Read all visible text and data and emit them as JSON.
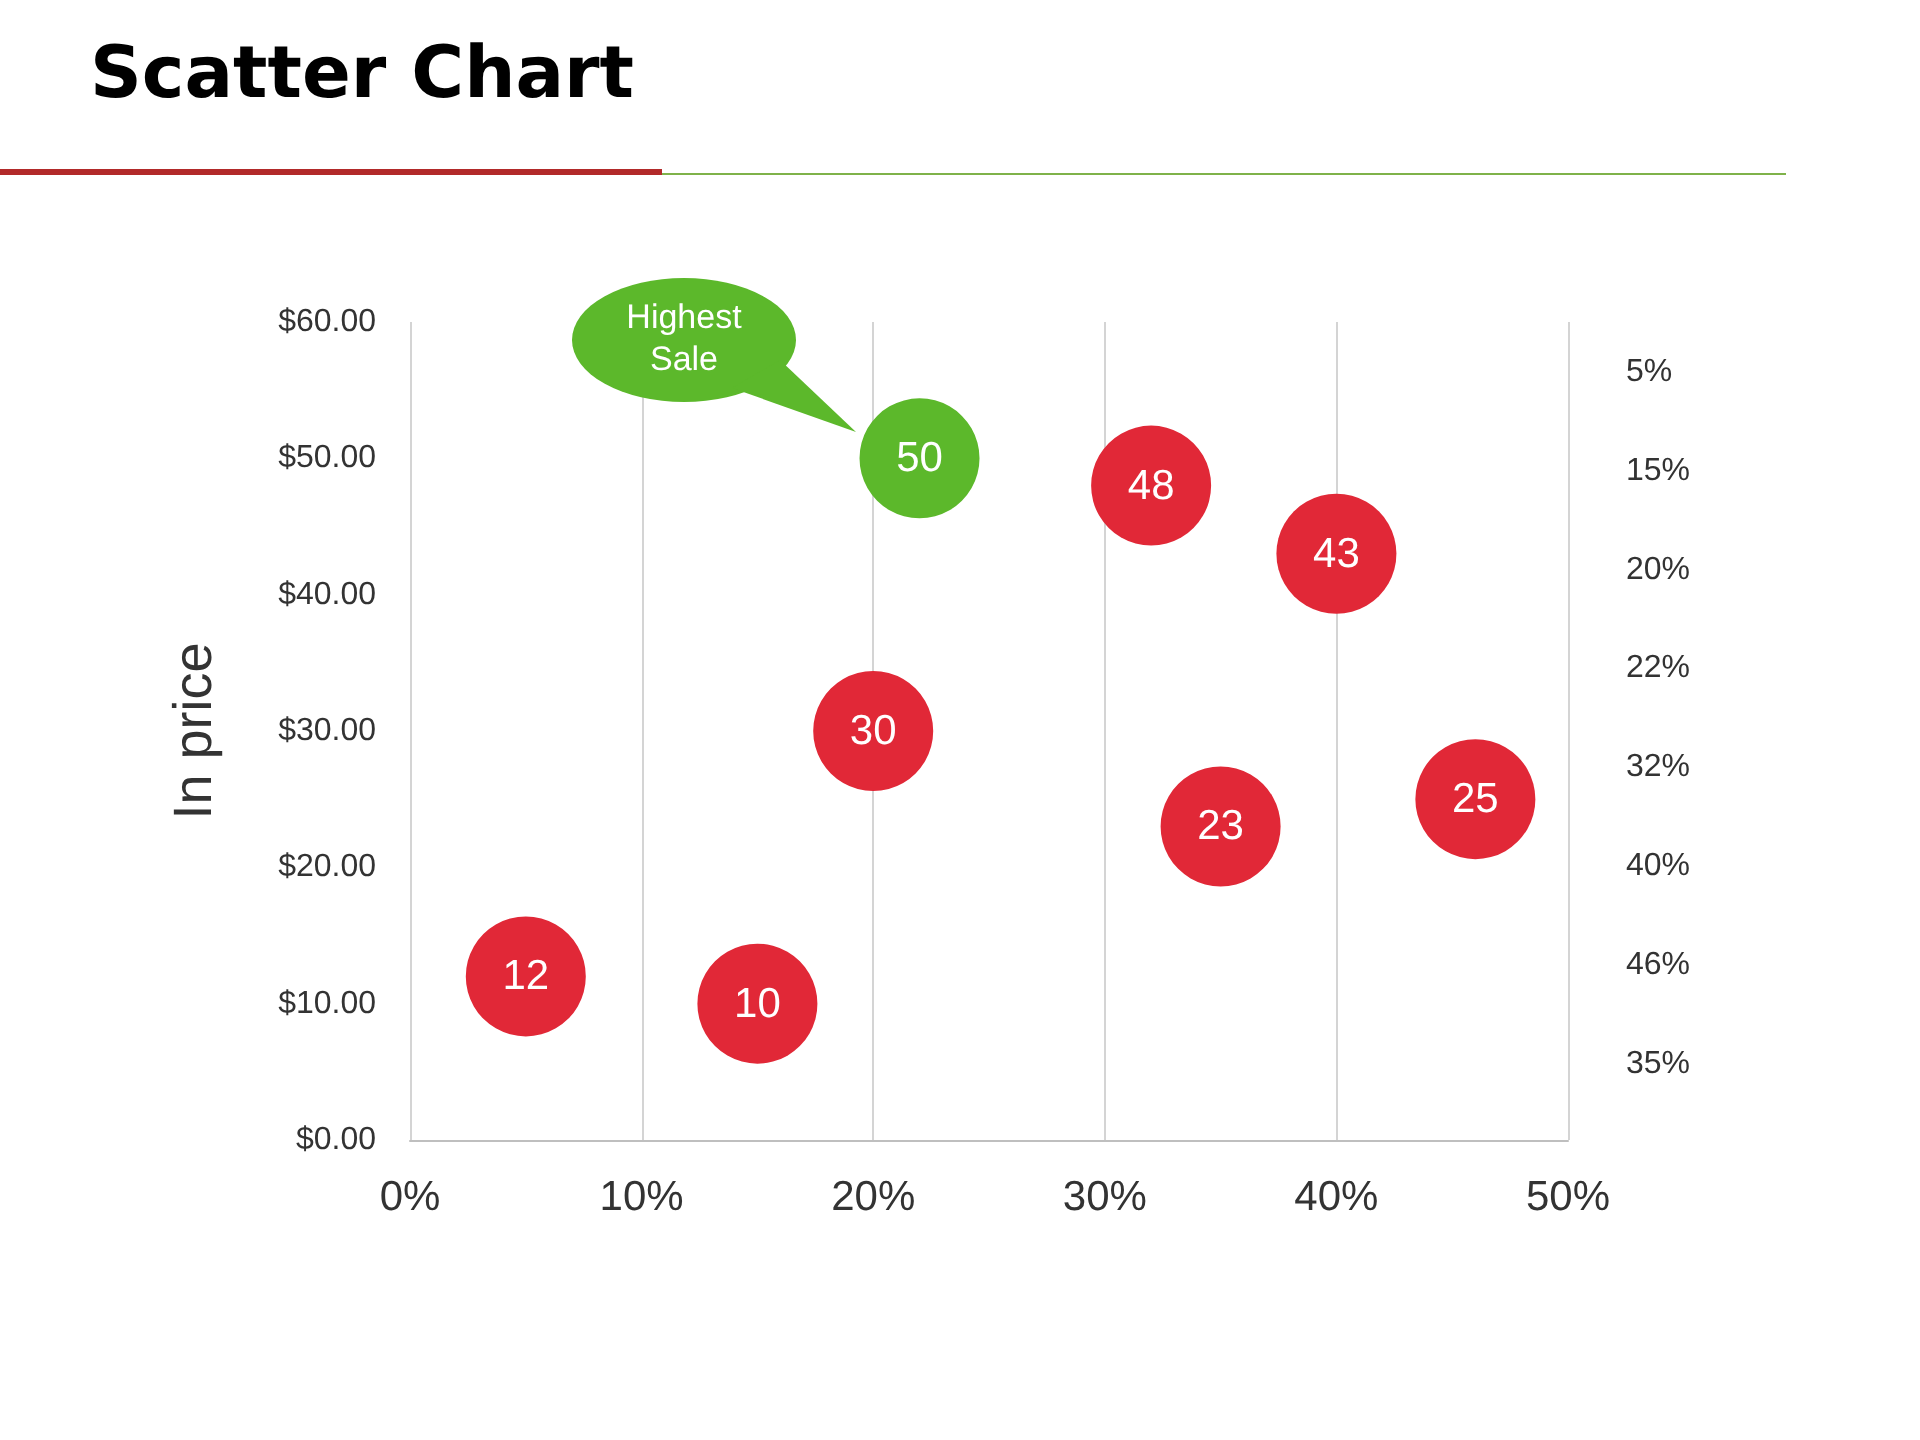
{
  "chart_data": {
    "type": "scatter",
    "title": "Scatter Chart",
    "ylabel": "In price",
    "x": [
      5,
      15,
      20,
      22,
      32,
      40,
      46,
      35
    ],
    "values": [
      12,
      10,
      30,
      50,
      48,
      43,
      25,
      23
    ],
    "colors": [
      "#e12837",
      "#e12837",
      "#e12837",
      "#5cb82b",
      "#e12837",
      "#e12837",
      "#e12837",
      "#e12837"
    ],
    "marker": "circle",
    "data_labels": true,
    "xlim": [
      0,
      50
    ],
    "xticks": [
      {
        "value": 0,
        "label": "0%"
      },
      {
        "value": 10,
        "label": "10%"
      },
      {
        "value": 20,
        "label": "20%"
      },
      {
        "value": 30,
        "label": "30%"
      },
      {
        "value": 40,
        "label": "40%"
      },
      {
        "value": 50,
        "label": "50%"
      }
    ],
    "ylim": [
      0,
      60
    ],
    "yticks": [
      {
        "value": 0,
        "label": "$0.00"
      },
      {
        "value": 10,
        "label": "$10.00"
      },
      {
        "value": 20,
        "label": "$20.00"
      },
      {
        "value": 30,
        "label": "$30.00"
      },
      {
        "value": 40,
        "label": "$40.00"
      },
      {
        "value": 50,
        "label": "$50.00"
      },
      {
        "value": 60,
        "label": "$60.00"
      }
    ],
    "grid": "x",
    "annotations": [
      "Highest Sale",
      "5%",
      "15%",
      "20%",
      "22%",
      "32%",
      "40%",
      "46%",
      "35%"
    ]
  }
}
